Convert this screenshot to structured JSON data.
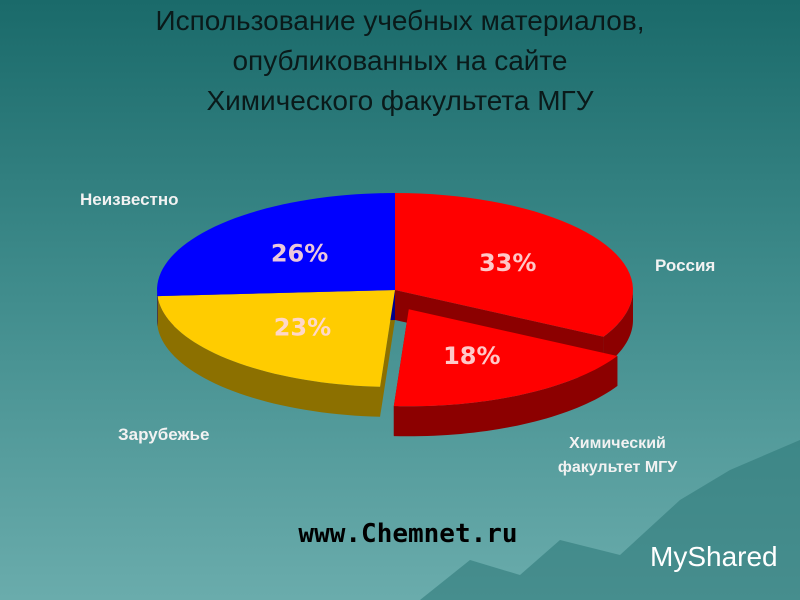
{
  "chart_data": {
    "type": "pie",
    "title": [
      "Использование учебных материалов,",
      "опубликованных на сайте",
      "Химического факультета МГУ"
    ],
    "categories": [
      "Россия",
      "Химический факультет МГУ",
      "Зарубежье",
      "Неизвестно"
    ],
    "values": [
      33,
      18,
      23,
      26
    ],
    "value_labels": [
      "33%",
      "18%",
      "23%",
      "26%"
    ],
    "colors": [
      "#ff0000",
      "#ff0000",
      "#ffcc00",
      "#0000ff"
    ],
    "exploded": [
      false,
      true,
      false,
      false
    ],
    "footer": "www.Chemnet.ru",
    "watermark": "MyShared"
  }
}
